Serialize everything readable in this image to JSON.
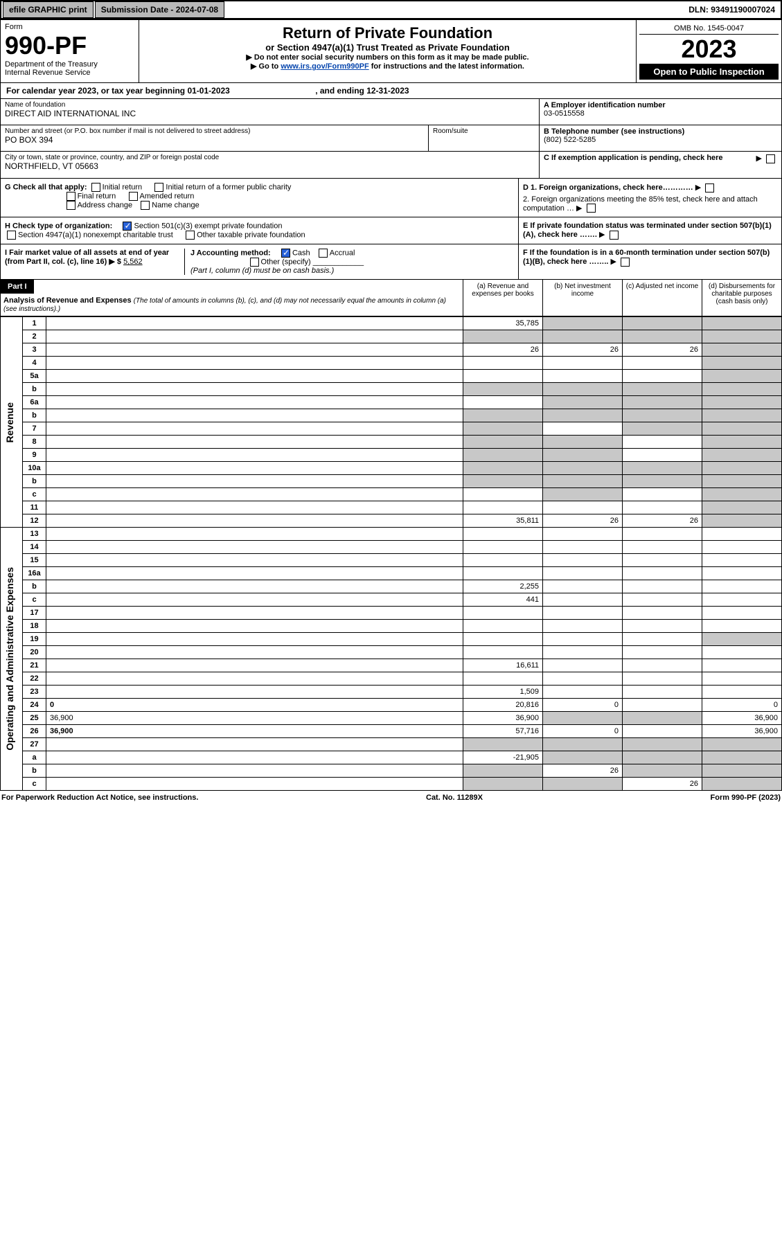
{
  "topbar": {
    "efile": "efile GRAPHIC print",
    "submission_label": "Submission Date - 2024-07-08",
    "dln": "DLN: 93491190007024"
  },
  "form_header": {
    "form_word": "Form",
    "form_no": "990-PF",
    "dept": "Department of the Treasury",
    "irs": "Internal Revenue Service",
    "title": "Return of Private Foundation",
    "subtitle": "or Section 4947(a)(1) Trust Treated as Private Foundation",
    "instr1": "▶ Do not enter social security numbers on this form as it may be made public.",
    "instr2_pre": "▶ Go to ",
    "instr2_link": "www.irs.gov/Form990PF",
    "instr2_post": " for instructions and the latest information.",
    "omb": "OMB No. 1545-0047",
    "year": "2023",
    "open": "Open to Public Inspection"
  },
  "cal_year": {
    "pre": "For calendar year 2023, or tax year beginning ",
    "begin": "01-01-2023",
    "mid": " , and ending ",
    "end": "12-31-2023"
  },
  "entity": {
    "name_lbl": "Name of foundation",
    "name": "DIRECT AID INTERNATIONAL INC",
    "addr_lbl": "Number and street (or P.O. box number if mail is not delivered to street address)",
    "addr": "PO BOX 394",
    "room_lbl": "Room/suite",
    "city_lbl": "City or town, state or province, country, and ZIP or foreign postal code",
    "city": "NORTHFIELD, VT  05663",
    "a_lbl": "A Employer identification number",
    "ein": "03-0515558",
    "b_lbl": "B Telephone number (see instructions)",
    "phone": "(802) 522-5285",
    "c_lbl": "C If exemption application is pending, check here"
  },
  "checks": {
    "g_lbl": "G Check all that apply:",
    "initial": "Initial return",
    "initial_pc": "Initial return of a former public charity",
    "final": "Final return",
    "amended": "Amended return",
    "addrchg": "Address change",
    "namechg": "Name change",
    "h_lbl": "H Check type of organization:",
    "h_501c3": "Section 501(c)(3) exempt private foundation",
    "h_4947": "Section 4947(a)(1) nonexempt charitable trust",
    "h_other": "Other taxable private foundation",
    "i_lbl": "I Fair market value of all assets at end of year (from Part II, col. (c), line 16) ▶ $",
    "i_val": "5,562",
    "j_lbl": "J Accounting method:",
    "j_cash": "Cash",
    "j_accrual": "Accrual",
    "j_other": "Other (specify)",
    "j_note": "(Part I, column (d) must be on cash basis.)",
    "d1": "D 1. Foreign organizations, check here…………",
    "d2": "2. Foreign organizations meeting the 85% test, check here and attach computation … ▶",
    "e": "E  If private foundation status was terminated under section 507(b)(1)(A), check here …….",
    "f": "F  If the foundation is in a 60-month termination under section 507(b)(1)(B), check here …….."
  },
  "part1": {
    "label": "Part I",
    "title": "Analysis of Revenue and Expenses",
    "title_note": " (The total of amounts in columns (b), (c), and (d) may not necessarily equal the amounts in column (a) (see instructions).)",
    "col_a": "(a)   Revenue and expenses per books",
    "col_b": "(b)   Net investment income",
    "col_c": "(c)   Adjusted net income",
    "col_d": "(d)   Disbursements for charitable purposes (cash basis only)"
  },
  "side": {
    "revenue": "Revenue",
    "opex": "Operating and Administrative Expenses"
  },
  "rows": [
    {
      "n": "1",
      "d": "",
      "a": "35,785",
      "b": "",
      "c": "",
      "shade_b": true,
      "shade_c": true,
      "shade_d": true
    },
    {
      "n": "2",
      "d": "",
      "a": "",
      "b": "",
      "c": "",
      "shade_a": true,
      "shade_b": true,
      "shade_c": true,
      "shade_d": true
    },
    {
      "n": "3",
      "d": "",
      "a": "26",
      "b": "26",
      "c": "26",
      "shade_d": true
    },
    {
      "n": "4",
      "d": "",
      "a": "",
      "b": "",
      "c": "",
      "shade_d": true
    },
    {
      "n": "5a",
      "d": "",
      "a": "",
      "b": "",
      "c": "",
      "shade_d": true
    },
    {
      "n": "b",
      "d": "",
      "a": "",
      "b": "",
      "c": "",
      "shade_a": true,
      "shade_b": true,
      "shade_c": true,
      "shade_d": true
    },
    {
      "n": "6a",
      "d": "",
      "a": "",
      "b": "",
      "c": "",
      "shade_b": true,
      "shade_c": true,
      "shade_d": true
    },
    {
      "n": "b",
      "d": "",
      "a": "",
      "b": "",
      "c": "",
      "shade_a": true,
      "shade_b": true,
      "shade_c": true,
      "shade_d": true
    },
    {
      "n": "7",
      "d": "",
      "a": "",
      "b": "",
      "c": "",
      "shade_a": true,
      "shade_c": true,
      "shade_d": true
    },
    {
      "n": "8",
      "d": "",
      "a": "",
      "b": "",
      "c": "",
      "shade_a": true,
      "shade_b": true,
      "shade_d": true
    },
    {
      "n": "9",
      "d": "",
      "a": "",
      "b": "",
      "c": "",
      "shade_a": true,
      "shade_b": true,
      "shade_d": true
    },
    {
      "n": "10a",
      "d": "",
      "a": "",
      "b": "",
      "c": "",
      "shade_a": true,
      "shade_b": true,
      "shade_c": true,
      "shade_d": true
    },
    {
      "n": "b",
      "d": "",
      "a": "",
      "b": "",
      "c": "",
      "shade_a": true,
      "shade_b": true,
      "shade_c": true,
      "shade_d": true
    },
    {
      "n": "c",
      "d": "",
      "a": "",
      "b": "",
      "c": "",
      "shade_b": true,
      "shade_d": true
    },
    {
      "n": "11",
      "d": "",
      "a": "",
      "b": "",
      "c": "",
      "shade_d": true
    },
    {
      "n": "12",
      "d": "",
      "a": "35,811",
      "b": "26",
      "c": "26",
      "bold": true,
      "shade_d": true
    },
    {
      "n": "13",
      "d": "",
      "a": "",
      "b": "",
      "c": ""
    },
    {
      "n": "14",
      "d": "",
      "a": "",
      "b": "",
      "c": ""
    },
    {
      "n": "15",
      "d": "",
      "a": "",
      "b": "",
      "c": ""
    },
    {
      "n": "16a",
      "d": "",
      "a": "",
      "b": "",
      "c": ""
    },
    {
      "n": "b",
      "d": "",
      "a": "2,255",
      "b": "",
      "c": ""
    },
    {
      "n": "c",
      "d": "",
      "a": "441",
      "b": "",
      "c": ""
    },
    {
      "n": "17",
      "d": "",
      "a": "",
      "b": "",
      "c": ""
    },
    {
      "n": "18",
      "d": "",
      "a": "",
      "b": "",
      "c": ""
    },
    {
      "n": "19",
      "d": "",
      "a": "",
      "b": "",
      "c": "",
      "shade_d": true
    },
    {
      "n": "20",
      "d": "",
      "a": "",
      "b": "",
      "c": ""
    },
    {
      "n": "21",
      "d": "",
      "a": "16,611",
      "b": "",
      "c": ""
    },
    {
      "n": "22",
      "d": "",
      "a": "",
      "b": "",
      "c": ""
    },
    {
      "n": "23",
      "d": "",
      "a": "1,509",
      "b": "",
      "c": ""
    },
    {
      "n": "24",
      "d": "0",
      "a": "20,816",
      "b": "0",
      "c": "",
      "bold": true
    },
    {
      "n": "25",
      "d": "36,900",
      "a": "36,900",
      "b": "",
      "c": "",
      "shade_b": true,
      "shade_c": true
    },
    {
      "n": "26",
      "d": "36,900",
      "a": "57,716",
      "b": "0",
      "c": "",
      "bold": true
    },
    {
      "n": "27",
      "d": "",
      "a": "",
      "b": "",
      "c": "",
      "shade_a": true,
      "shade_b": true,
      "shade_c": true,
      "shade_d": true
    },
    {
      "n": "a",
      "d": "",
      "a": "-21,905",
      "b": "",
      "c": "",
      "bold": true,
      "shade_b": true,
      "shade_c": true,
      "shade_d": true
    },
    {
      "n": "b",
      "d": "",
      "a": "",
      "b": "26",
      "c": "",
      "bold": true,
      "shade_a": true,
      "shade_c": true,
      "shade_d": true
    },
    {
      "n": "c",
      "d": "",
      "a": "",
      "b": "",
      "c": "26",
      "bold": true,
      "shade_a": true,
      "shade_b": true,
      "shade_d": true
    }
  ],
  "footer": {
    "left": "For Paperwork Reduction Act Notice, see instructions.",
    "mid": "Cat. No. 11289X",
    "right": "Form 990-PF (2023)"
  }
}
